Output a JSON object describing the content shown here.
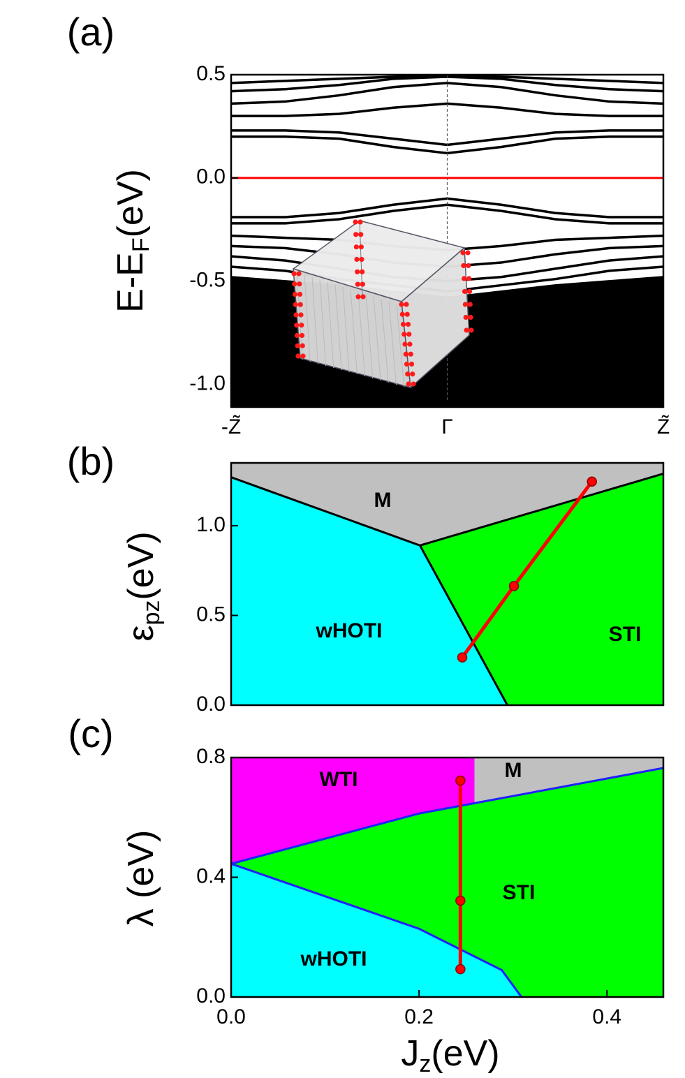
{
  "chart_data": [
    {
      "type": "line",
      "panel_label": "(a)",
      "ylabel": {
        "main": "E-E",
        "sub": "F",
        "unit": "(eV)"
      },
      "x": [
        -1,
        -0.75,
        -0.5,
        -0.25,
        0,
        0.25,
        0.5,
        0.75,
        1
      ],
      "xlim": [
        -1,
        1
      ],
      "ylim": [
        -1.11,
        0.5
      ],
      "xticks": [
        {
          "value": -1,
          "label": "-Z̃"
        },
        {
          "value": 0,
          "label": "Γ"
        },
        {
          "value": 1,
          "label": "Z̃"
        }
      ],
      "yticks": [
        {
          "value": 0.5,
          "label": "0.5"
        },
        {
          "value": 0,
          "label": "0.0"
        },
        {
          "value": -0.5,
          "label": "-0.5"
        },
        {
          "value": -1,
          "label": "-1.0"
        }
      ],
      "hline": {
        "value": 0,
        "color": "#ff0000"
      },
      "vline": {
        "value": 0
      },
      "series": [
        {
          "color": "#000000",
          "values": [
            0.2,
            0.2,
            0.19,
            0.15,
            0.12,
            0.15,
            0.19,
            0.2,
            0.2
          ]
        },
        {
          "color": "#000000",
          "values": [
            0.23,
            0.23,
            0.22,
            0.19,
            0.16,
            0.19,
            0.22,
            0.23,
            0.23
          ]
        },
        {
          "color": "#000000",
          "values": [
            0.3,
            0.3,
            0.31,
            0.34,
            0.36,
            0.34,
            0.31,
            0.3,
            0.3
          ]
        },
        {
          "color": "#000000",
          "values": [
            0.36,
            0.37,
            0.4,
            0.44,
            0.46,
            0.44,
            0.4,
            0.37,
            0.36
          ]
        },
        {
          "color": "#000000",
          "values": [
            0.42,
            0.43,
            0.45,
            0.48,
            0.49,
            0.48,
            0.45,
            0.43,
            0.42
          ]
        },
        {
          "color": "#000000",
          "values": [
            0.46,
            0.47,
            0.48,
            0.49,
            0.5,
            0.49,
            0.48,
            0.47,
            0.46
          ]
        },
        {
          "color": "#000000",
          "values": [
            -0.19,
            -0.19,
            -0.17,
            -0.13,
            -0.1,
            -0.13,
            -0.17,
            -0.19,
            -0.19
          ]
        },
        {
          "color": "#000000",
          "values": [
            -0.22,
            -0.22,
            -0.2,
            -0.16,
            -0.13,
            -0.16,
            -0.2,
            -0.22,
            -0.22
          ]
        },
        {
          "color": "#000000",
          "values": [
            -0.28,
            -0.29,
            -0.3,
            -0.33,
            -0.35,
            -0.33,
            -0.3,
            -0.29,
            -0.28
          ]
        },
        {
          "color": "#000000",
          "values": [
            -0.33,
            -0.34,
            -0.37,
            -0.41,
            -0.43,
            -0.41,
            -0.37,
            -0.34,
            -0.33
          ]
        },
        {
          "color": "#000000",
          "values": [
            -0.38,
            -0.4,
            -0.44,
            -0.48,
            -0.5,
            -0.48,
            -0.44,
            -0.4,
            -0.38
          ]
        },
        {
          "color": "#000000",
          "values": [
            -0.43,
            -0.45,
            -0.49,
            -0.52,
            -0.55,
            -0.52,
            -0.49,
            -0.45,
            -0.43
          ]
        },
        {
          "color": "#000000",
          "fill": true,
          "values": [
            -0.48,
            -0.5,
            -0.52,
            -0.55,
            -0.58,
            -0.55,
            -0.52,
            -0.5,
            -0.48
          ]
        }
      ]
    },
    {
      "type": "area",
      "panel_label": "(b)",
      "ylabel": {
        "main": "ε",
        "sub": "pz",
        "unit": "(eV)"
      },
      "xlim": [
        0,
        0.46
      ],
      "ylim": [
        0,
        1.35
      ],
      "yticks": [
        {
          "value": 0,
          "label": "0.0"
        },
        {
          "value": 0.5,
          "label": "0.5"
        },
        {
          "value": 1,
          "label": "1.0"
        }
      ],
      "regions": [
        {
          "label": "M",
          "color": "#c0c0c0",
          "x": [
            0,
            0,
            0.201,
            0.46,
            0.46
          ],
          "y": [
            1.35,
            1.27,
            0.89,
            1.29,
            1.35
          ]
        },
        {
          "label": "wHOTI",
          "color": "#00ffff",
          "x": [
            0,
            0,
            0.201,
            0.294
          ],
          "y": [
            0,
            1.27,
            0.89,
            0
          ]
        },
        {
          "label": "STI",
          "color": "#00ff00",
          "x": [
            0.201,
            0.46,
            0.46,
            0.294
          ],
          "y": [
            0.89,
            1.29,
            0,
            0
          ]
        }
      ],
      "boundaries": [
        {
          "color": "#000000",
          "x": [
            0,
            0.201,
            0.46
          ],
          "y": [
            1.27,
            0.89,
            1.29
          ]
        },
        {
          "color": "#000000",
          "x": [
            0.201,
            0.294
          ],
          "y": [
            0.89,
            0
          ]
        }
      ],
      "path": {
        "color": "#ff0000",
        "x": [
          0.246,
          0.301,
          0.384
        ],
        "y": [
          0.266,
          0.664,
          1.246
        ]
      }
    },
    {
      "type": "area",
      "panel_label": "(c)",
      "ylabel": {
        "main": "λ (eV)"
      },
      "xlabel": {
        "main": "J",
        "sub": "z",
        "unit": "(eV)"
      },
      "xlim": [
        0,
        0.46
      ],
      "ylim": [
        0,
        0.8
      ],
      "xticks": [
        {
          "value": 0,
          "label": "0.0"
        },
        {
          "value": 0.2,
          "label": "0.2"
        },
        {
          "value": 0.4,
          "label": "0.4"
        }
      ],
      "yticks": [
        {
          "value": 0,
          "label": "0.0"
        },
        {
          "value": 0.4,
          "label": "0.4"
        },
        {
          "value": 0.8,
          "label": "0.8"
        }
      ],
      "regions": [
        {
          "label": "WTI",
          "color": "#ff00ff",
          "x": [
            0,
            0.259,
            0.259,
            0.2,
            0
          ],
          "y": [
            0.8,
            0.8,
            0.643,
            0.613,
            0.445
          ]
        },
        {
          "label": "M",
          "color": "#c0c0c0",
          "x": [
            0.259,
            0.46,
            0.46,
            0.259
          ],
          "y": [
            0.8,
            0.8,
            0.765,
            0.643
          ]
        },
        {
          "label": "STI",
          "color": "#00ff00",
          "x": [
            0,
            0.2,
            0.46,
            0.46,
            0.309,
            0.288,
            0.2
          ],
          "y": [
            0.445,
            0.613,
            0.765,
            0,
            0,
            0.09,
            0.228
          ]
        },
        {
          "label": "wHOTI",
          "color": "#00ffff",
          "x": [
            0,
            0,
            0.2,
            0.288,
            0.309
          ],
          "y": [
            0,
            0.445,
            0.228,
            0.09,
            0
          ]
        }
      ],
      "boundaries": [
        {
          "color": "#2020ff",
          "x": [
            0,
            0.2,
            0.46
          ],
          "y": [
            0.445,
            0.613,
            0.765
          ]
        },
        {
          "color": "#2020ff",
          "x": [
            0,
            0.2,
            0.288,
            0.309
          ],
          "y": [
            0.445,
            0.228,
            0.09,
            0
          ]
        }
      ],
      "path": {
        "color": "#ff0000",
        "x": [
          0.244,
          0.244,
          0.244
        ],
        "y": [
          0.723,
          0.322,
          0.093
        ]
      }
    }
  ]
}
